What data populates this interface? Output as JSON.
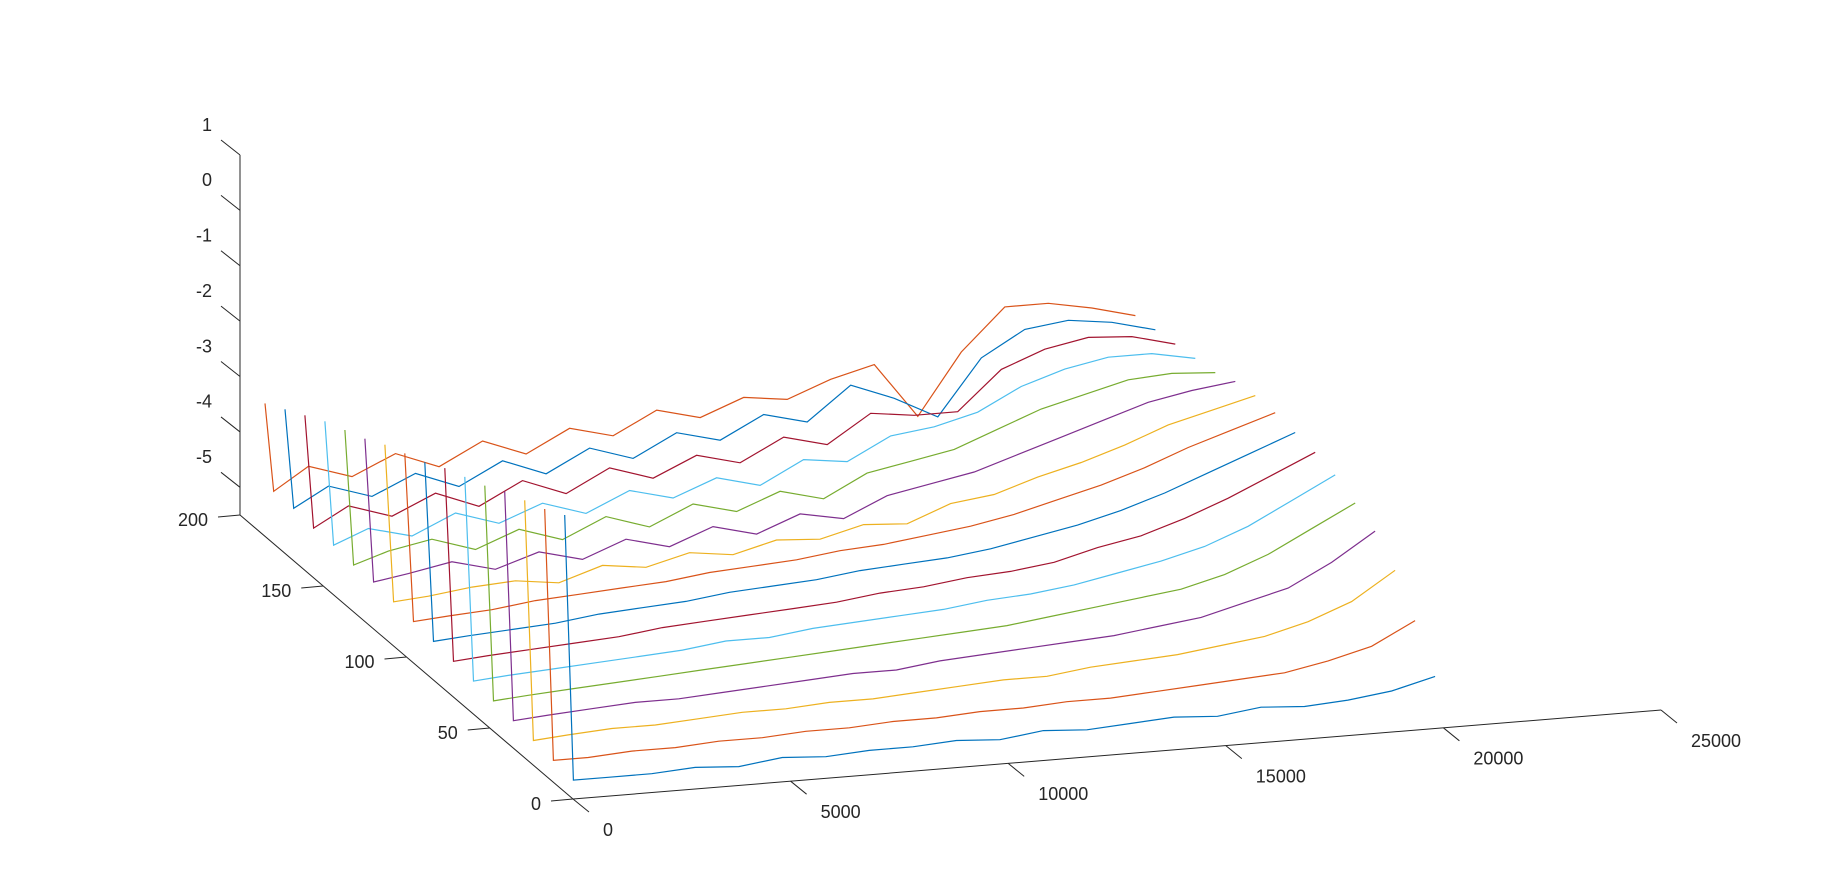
{
  "chart_data": {
    "type": "waterfall3d",
    "x": [
      0,
      200,
      1000,
      2000,
      3000,
      4000,
      5000,
      6000,
      7000,
      8000,
      9000,
      10000,
      11000,
      12000,
      13000,
      14000,
      15000,
      16000,
      17000,
      18000,
      19000,
      20000
    ],
    "xlim": [
      0,
      25000
    ],
    "xticks": [
      0,
      5000,
      10000,
      15000,
      20000,
      25000
    ],
    "ylim": [
      0,
      200
    ],
    "yticks": [
      0,
      50,
      100,
      150,
      200
    ],
    "zlim": [
      -5.5,
      1
    ],
    "zticks": [
      -5,
      -4,
      -3,
      -2,
      -1,
      0,
      1
    ],
    "series": [
      {
        "y": 5,
        "color": "#0072bd",
        "values": [
          -0.5,
          -5.3,
          -5.3,
          -5.3,
          -5.25,
          -5.3,
          -5.2,
          -5.25,
          -5.2,
          -5.2,
          -5.15,
          -5.2,
          -5.1,
          -5.15,
          -5.1,
          -5.05,
          -5.1,
          -5.0,
          -5.05,
          -5.0,
          -4.9,
          -4.7
        ]
      },
      {
        "y": 17,
        "color": "#d95319",
        "values": [
          -0.7,
          -5.25,
          -5.25,
          -5.2,
          -5.2,
          -5.15,
          -5.15,
          -5.1,
          -5.1,
          -5.05,
          -5.05,
          -5.0,
          -5.0,
          -4.95,
          -4.95,
          -4.9,
          -4.85,
          -4.8,
          -4.75,
          -4.6,
          -4.4,
          -4.0
        ]
      },
      {
        "y": 29,
        "color": "#edb120",
        "values": [
          -0.85,
          -5.2,
          -5.15,
          -5.1,
          -5.1,
          -5.05,
          -5.0,
          -5.0,
          -4.95,
          -4.95,
          -4.9,
          -4.85,
          -4.8,
          -4.8,
          -4.7,
          -4.65,
          -4.6,
          -4.5,
          -4.4,
          -4.2,
          -3.9,
          -3.4
        ]
      },
      {
        "y": 41,
        "color": "#7e2f8e",
        "values": [
          -1.0,
          -5.15,
          -5.1,
          -5.05,
          -5.0,
          -5.0,
          -4.95,
          -4.9,
          -4.85,
          -4.8,
          -4.8,
          -4.7,
          -4.65,
          -4.6,
          -4.55,
          -4.5,
          -4.4,
          -4.3,
          -4.1,
          -3.9,
          -3.5,
          -3.0
        ]
      },
      {
        "y": 53,
        "color": "#77ac30",
        "values": [
          -1.2,
          -5.1,
          -5.05,
          -5.0,
          -4.95,
          -4.9,
          -4.85,
          -4.8,
          -4.75,
          -4.7,
          -4.65,
          -4.6,
          -4.55,
          -4.5,
          -4.4,
          -4.3,
          -4.2,
          -4.1,
          -3.9,
          -3.6,
          -3.2,
          -2.8
        ]
      },
      {
        "y": 65,
        "color": "#4dbeee",
        "values": [
          -1.35,
          -5.05,
          -5.0,
          -4.95,
          -4.9,
          -4.85,
          -4.8,
          -4.7,
          -4.7,
          -4.6,
          -4.55,
          -4.5,
          -4.45,
          -4.35,
          -4.3,
          -4.2,
          -4.05,
          -3.9,
          -3.7,
          -3.4,
          -3.0,
          -2.6
        ]
      },
      {
        "y": 77,
        "color": "#a2142f",
        "values": [
          -1.5,
          -5.0,
          -4.95,
          -4.9,
          -4.85,
          -4.8,
          -4.7,
          -4.65,
          -4.6,
          -4.55,
          -4.5,
          -4.4,
          -4.35,
          -4.25,
          -4.2,
          -4.1,
          -3.9,
          -3.75,
          -3.5,
          -3.2,
          -2.85,
          -2.5
        ]
      },
      {
        "y": 89,
        "color": "#0072bd",
        "values": [
          -1.7,
          -4.95,
          -4.9,
          -4.85,
          -4.8,
          -4.7,
          -4.65,
          -4.6,
          -4.5,
          -4.45,
          -4.4,
          -4.3,
          -4.25,
          -4.2,
          -4.1,
          -3.95,
          -3.8,
          -3.6,
          -3.35,
          -3.05,
          -2.75,
          -2.45
        ]
      },
      {
        "y": 101,
        "color": "#d95319",
        "values": [
          -1.85,
          -4.9,
          -4.85,
          -4.8,
          -4.7,
          -4.65,
          -4.6,
          -4.55,
          -4.45,
          -4.4,
          -4.35,
          -4.25,
          -4.2,
          -4.1,
          -4.0,
          -3.85,
          -3.65,
          -3.45,
          -3.2,
          -2.9,
          -2.65,
          -2.4
        ]
      },
      {
        "y": 113,
        "color": "#edb120",
        "values": [
          -2.0,
          -4.85,
          -4.8,
          -4.7,
          -4.65,
          -4.75,
          -4.5,
          -4.6,
          -4.4,
          -4.5,
          -4.3,
          -4.35,
          -4.15,
          -4.2,
          -3.9,
          -3.8,
          -3.55,
          -3.35,
          -3.1,
          -2.8,
          -2.6,
          -2.4
        ]
      },
      {
        "y": 125,
        "color": "#7e2f8e",
        "values": [
          -2.2,
          -4.8,
          -4.7,
          -4.55,
          -4.75,
          -4.5,
          -4.7,
          -4.4,
          -4.6,
          -4.3,
          -4.5,
          -4.2,
          -4.35,
          -4.0,
          -3.85,
          -3.7,
          -3.45,
          -3.2,
          -2.95,
          -2.7,
          -2.55,
          -2.45
        ]
      },
      {
        "y": 137,
        "color": "#77ac30",
        "values": [
          -2.35,
          -4.8,
          -4.6,
          -4.45,
          -4.7,
          -4.4,
          -4.65,
          -4.3,
          -4.55,
          -4.2,
          -4.4,
          -4.1,
          -4.3,
          -3.9,
          -3.75,
          -3.6,
          -3.3,
          -3.0,
          -2.8,
          -2.6,
          -2.55,
          -2.6
        ]
      },
      {
        "y": 149,
        "color": "#4dbeee",
        "values": [
          -2.5,
          -4.75,
          -4.5,
          -4.7,
          -4.35,
          -4.6,
          -4.3,
          -4.55,
          -4.2,
          -4.4,
          -4.1,
          -4.3,
          -3.9,
          -4.0,
          -3.6,
          -3.5,
          -3.3,
          -2.9,
          -2.65,
          -2.5,
          -2.5,
          -2.65
        ]
      },
      {
        "y": 161,
        "color": "#a2142f",
        "values": [
          -2.7,
          -4.75,
          -4.4,
          -4.65,
          -4.3,
          -4.6,
          -4.2,
          -4.5,
          -4.1,
          -4.35,
          -4.0,
          -4.2,
          -3.8,
          -4.0,
          -3.5,
          -3.6,
          -3.6,
          -2.9,
          -2.6,
          -2.45,
          -2.5,
          -2.7
        ]
      },
      {
        "y": 173,
        "color": "#0072bd",
        "values": [
          -2.9,
          -4.7,
          -4.35,
          -4.6,
          -4.25,
          -4.55,
          -4.15,
          -4.45,
          -4.05,
          -4.3,
          -3.9,
          -4.1,
          -3.7,
          -3.9,
          -3.3,
          -3.6,
          -4.0,
          -3.0,
          -2.55,
          -2.45,
          -2.55,
          -2.75
        ]
      },
      {
        "y": 185,
        "color": "#d95319",
        "values": [
          -3.1,
          -4.7,
          -4.3,
          -4.55,
          -4.2,
          -4.5,
          -4.1,
          -4.4,
          -4.0,
          -4.2,
          -3.8,
          -4.0,
          -3.7,
          -3.8,
          -3.5,
          -3.3,
          -4.3,
          -3.2,
          -2.45,
          -2.45,
          -2.6,
          -2.8
        ]
      }
    ]
  }
}
